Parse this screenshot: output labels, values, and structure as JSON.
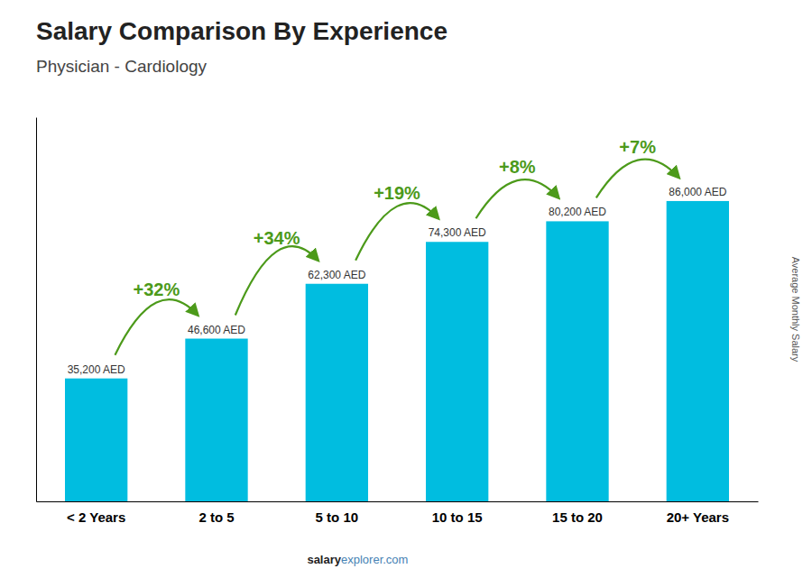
{
  "chart_data": {
    "type": "bar",
    "title": "Salary Comparison By Experience",
    "subtitle": "Physician - Cardiology",
    "ylabel": "Average Monthly Salary",
    "categories": [
      "< 2 Years",
      "2 to 5",
      "5 to 10",
      "10 to 15",
      "15 to 20",
      "20+ Years"
    ],
    "values": [
      35200,
      46600,
      62300,
      74300,
      80200,
      86000
    ],
    "value_labels": [
      "35,200 AED",
      "46,600 AED",
      "62,300 AED",
      "74,300 AED",
      "80,200 AED",
      "86,000 AED"
    ],
    "data_labels": true,
    "annotations": [
      "+32%",
      "+34%",
      "+19%",
      "+8%",
      "+7%"
    ],
    "footer": [
      "salary",
      "explorer.com"
    ],
    "color": "#00bde0",
    "ylim": [
      0,
      110000
    ],
    "grid": false,
    "tick_labels": "x"
  }
}
